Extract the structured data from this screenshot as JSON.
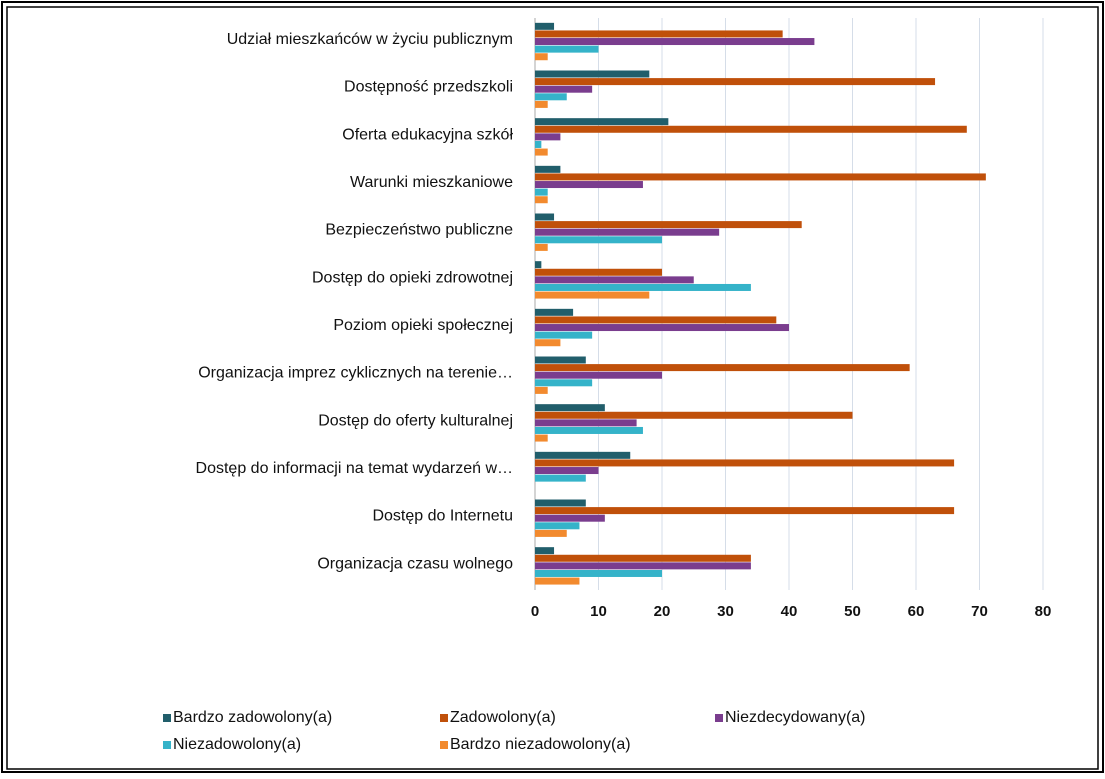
{
  "chart_data": {
    "type": "hbar",
    "categories": [
      "Udział mieszkańców w życiu publicznym",
      "Dostępność przedszkoli",
      "Oferta edukacyjna szkół",
      "Warunki mieszkaniowe",
      "Bezpieczeństwo publiczne",
      "Dostęp do opieki zdrowotnej",
      "Poziom opieki społecznej",
      "Organizacja imprez cyklicznych na terenie…",
      "Dostęp do oferty kulturalnej",
      "Dostęp do informacji na temat wydarzeń w…",
      "Dostęp do Internetu",
      "Organizacja czasu wolnego"
    ],
    "series": [
      {
        "name": "Bardzo zadowolony(a)",
        "color": "#215e6b",
        "values": [
          3,
          18,
          21,
          4,
          3,
          1,
          6,
          8,
          11,
          15,
          8,
          3
        ]
      },
      {
        "name": "Zadowolony(a)",
        "color": "#c0500a",
        "values": [
          39,
          63,
          68,
          71,
          42,
          20,
          38,
          59,
          50,
          66,
          66,
          34
        ]
      },
      {
        "name": "Niezdecydowany(a)",
        "color": "#7a3d8e",
        "values": [
          44,
          9,
          4,
          17,
          29,
          25,
          40,
          20,
          16,
          10,
          11,
          34
        ]
      },
      {
        "name": "Niezadowolony(a)",
        "color": "#35b3c9",
        "values": [
          10,
          5,
          1,
          2,
          20,
          34,
          9,
          9,
          17,
          8,
          7,
          20
        ]
      },
      {
        "name": "Bardzo niezadowolony(a)",
        "color": "#f28a2e",
        "values": [
          2,
          2,
          2,
          2,
          2,
          18,
          4,
          2,
          2,
          0,
          5,
          7
        ]
      }
    ],
    "xlim": [
      0,
      80
    ],
    "xticks": [
      0,
      10,
      20,
      30,
      40,
      50,
      60,
      70,
      80
    ],
    "grid": true,
    "legend": "bottom"
  }
}
